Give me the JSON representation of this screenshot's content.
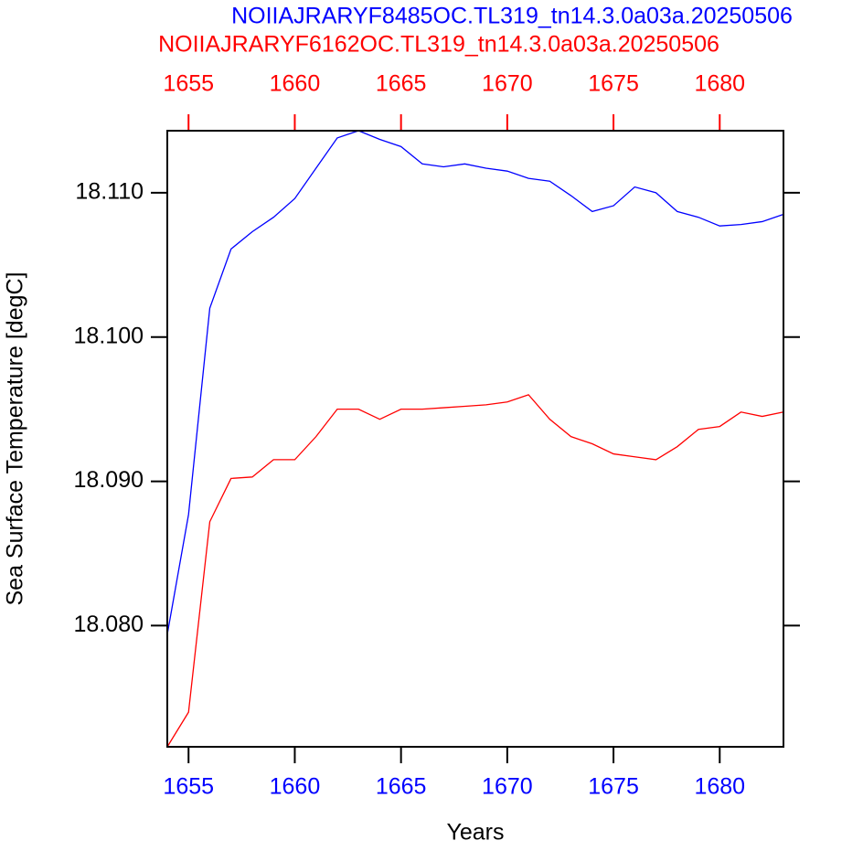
{
  "chart_data": {
    "type": "line",
    "x_label": "Years",
    "y_label": "Sea Surface Temperature [degC]",
    "x": [
      1654,
      1655,
      1656,
      1657,
      1658,
      1659,
      1660,
      1661,
      1662,
      1663,
      1664,
      1665,
      1666,
      1667,
      1668,
      1669,
      1670,
      1671,
      1672,
      1673,
      1674,
      1675,
      1676,
      1677,
      1678,
      1679,
      1680,
      1681,
      1682,
      1683
    ],
    "series": [
      {
        "name": "NOIIAJRARYF8485OC.TL319_tn14.3.0a03a.20250506",
        "color": "#0000ff",
        "values": [
          18.0794,
          18.0877,
          18.102,
          18.1061,
          18.1073,
          18.1083,
          18.1096,
          18.1117,
          18.1138,
          18.1143,
          18.1137,
          18.1132,
          18.112,
          18.1118,
          18.112,
          18.1117,
          18.1115,
          18.111,
          18.1108,
          18.1098,
          18.1087,
          18.1091,
          18.1104,
          18.11,
          18.1087,
          18.1083,
          18.1077,
          18.1078,
          18.108,
          18.1085
        ]
      },
      {
        "name": "NOIIAJRARYF6162OC.TL319_tn14.3.0a03a.20250506",
        "color": "#ff0000",
        "axis": "x2",
        "values": [
          18.0716,
          18.074,
          18.0872,
          18.0902,
          18.0903,
          18.0915,
          18.0915,
          18.0931,
          18.095,
          18.095,
          18.0943,
          18.095,
          18.095,
          18.0951,
          18.0952,
          18.0953,
          18.0955,
          18.096,
          18.0943,
          18.0931,
          18.0926,
          18.0919,
          18.0917,
          18.0915,
          18.0924,
          18.0936,
          18.0938,
          18.0948,
          18.0945,
          18.0948
        ]
      }
    ],
    "xlim": [
      1654,
      1683
    ],
    "xticks": [
      1655,
      1660,
      1665,
      1670,
      1675,
      1680
    ],
    "xtick_color": "#0000ff",
    "x2lim": [
      1654,
      1683
    ],
    "x2ticks": [
      1655,
      1660,
      1665,
      1670,
      1675,
      1680
    ],
    "x2tick_color": "#ff0000",
    "ylim": [
      18.0716,
      18.1143
    ],
    "yticks": [
      {
        "value": 18.08,
        "label": "18.080"
      },
      {
        "value": 18.09,
        "label": "18.090"
      },
      {
        "value": 18.1,
        "label": "18.100"
      },
      {
        "value": 18.11,
        "label": "18.110"
      }
    ]
  }
}
